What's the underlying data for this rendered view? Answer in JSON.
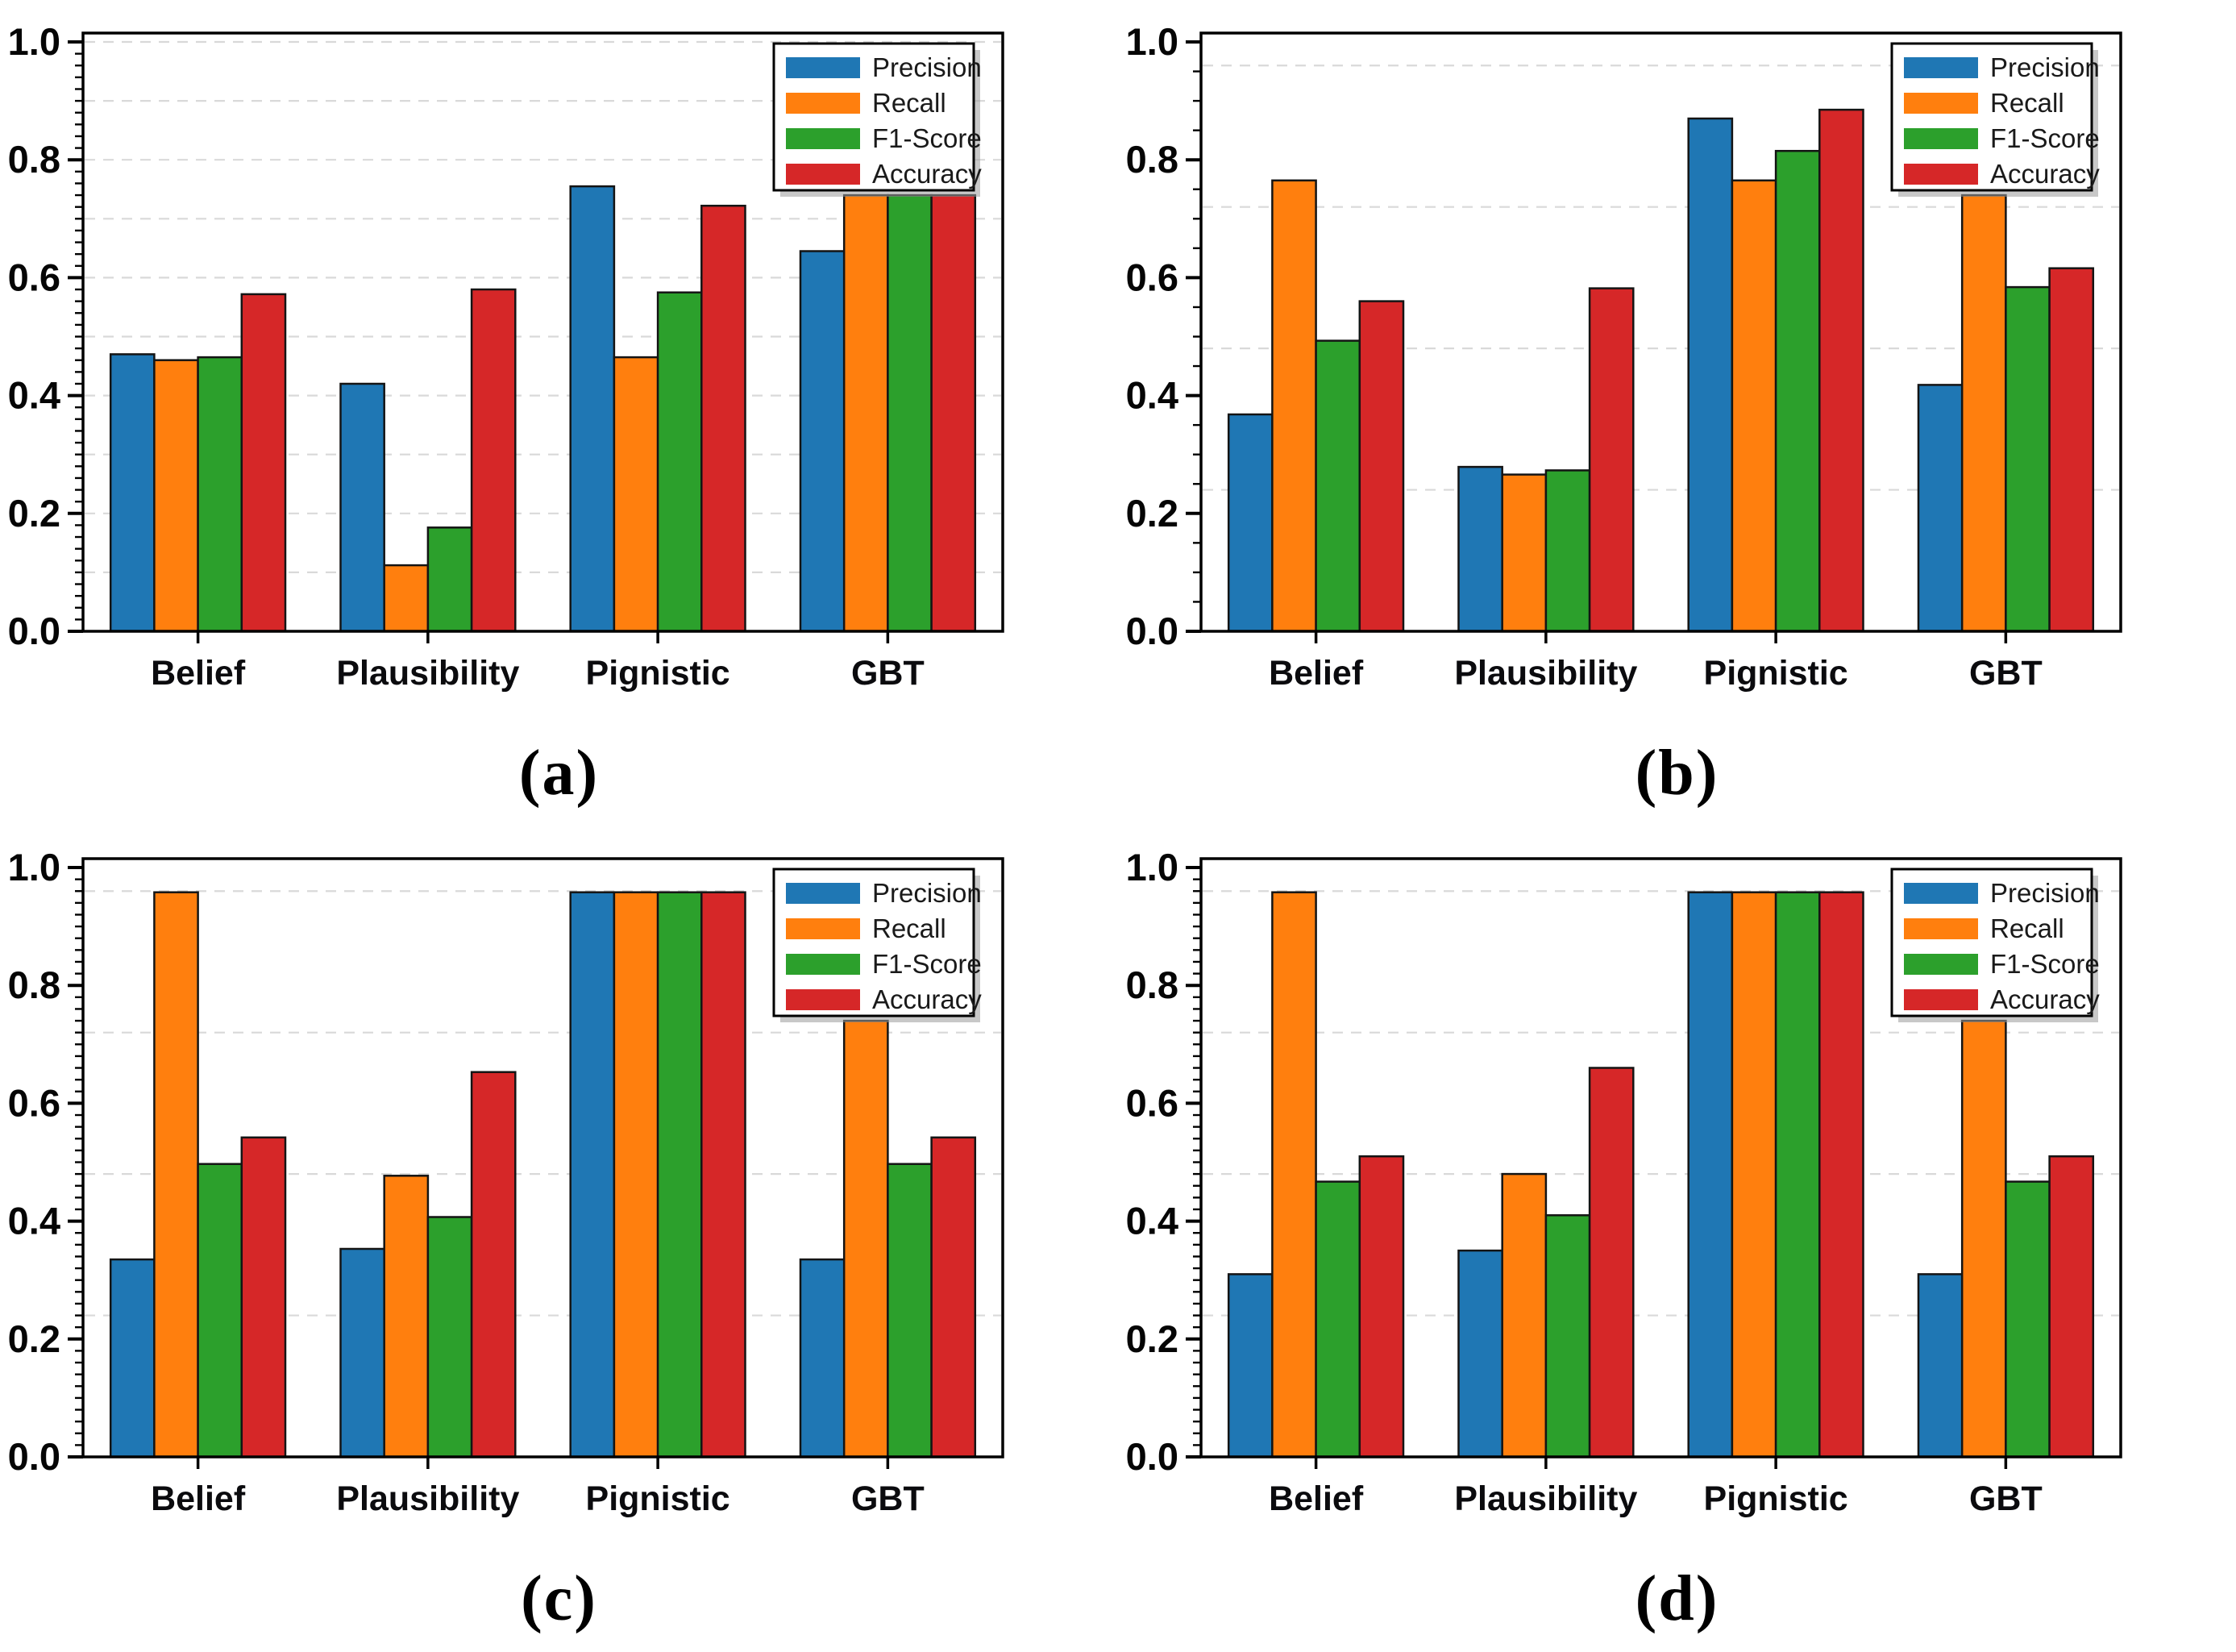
{
  "figure": {
    "background": "#ffffff",
    "description": "Four grouped bar chart panels comparing classification metrics across decision rules",
    "panel_count": 4
  },
  "chart_data": [
    {
      "type": "bar",
      "panel_label": "(a)",
      "categories": [
        "Belief",
        "Plausibility",
        "Pignistic",
        "GBT"
      ],
      "series": [
        {
          "name": "Precision",
          "color": "#1f77b4",
          "values": [
            0.47,
            0.42,
            0.755,
            0.645
          ]
        },
        {
          "name": "Recall",
          "color": "#ff7f0e",
          "values": [
            0.46,
            0.112,
            0.465,
            0.74
          ]
        },
        {
          "name": "F1-Score",
          "color": "#2ca02c",
          "values": [
            0.465,
            0.176,
            0.575,
            0.74
          ]
        },
        {
          "name": "Accuracy",
          "color": "#d62728",
          "values": [
            0.572,
            0.58,
            0.722,
            0.74
          ]
        }
      ],
      "ylim": [
        0,
        1.02
      ],
      "yticks": [
        0.0,
        0.2,
        0.4,
        0.6,
        0.8,
        1.0
      ],
      "y_minor_step": 0.02,
      "gridlines": [
        0.1,
        0.2,
        0.3,
        0.4,
        0.5,
        0.6,
        0.7,
        0.8,
        0.9,
        1.0
      ],
      "grid_style": "dashed",
      "legend_position": "top-right",
      "legend_labels": [
        "Precision",
        "Recall",
        "F1-Score",
        "Accuracy"
      ]
    },
    {
      "type": "bar",
      "panel_label": "(b)",
      "categories": [
        "Belief",
        "Plausibility",
        "Pignistic",
        "GBT"
      ],
      "series": [
        {
          "name": "Precision",
          "color": "#1f77b4",
          "values": [
            0.368,
            0.279,
            0.87,
            0.418
          ]
        },
        {
          "name": "Recall",
          "color": "#ff7f0e",
          "values": [
            0.765,
            0.266,
            0.765,
            0.74
          ]
        },
        {
          "name": "F1-Score",
          "color": "#2ca02c",
          "values": [
            0.493,
            0.273,
            0.815,
            0.584
          ]
        },
        {
          "name": "Accuracy",
          "color": "#d62728",
          "values": [
            0.56,
            0.582,
            0.885,
            0.616
          ]
        }
      ],
      "ylim": [
        0,
        1.02
      ],
      "yticks": [
        0.0,
        0.2,
        0.4,
        0.6,
        0.8,
        1.0
      ],
      "y_minor_step": 0.05,
      "gridlines": [
        0.24,
        0.48,
        0.72,
        0.96
      ],
      "grid_style": "dashed",
      "legend_position": "top-right",
      "legend_labels": [
        "Precision",
        "Recall",
        "F1-Score",
        "Accuracy"
      ]
    },
    {
      "type": "bar",
      "panel_label": "(c)",
      "categories": [
        "Belief",
        "Plausibility",
        "Pignistic",
        "GBT"
      ],
      "series": [
        {
          "name": "Precision",
          "color": "#1f77b4",
          "values": [
            0.335,
            0.353,
            0.958,
            0.335
          ]
        },
        {
          "name": "Recall",
          "color": "#ff7f0e",
          "values": [
            0.958,
            0.477,
            0.958,
            0.74
          ]
        },
        {
          "name": "F1-Score",
          "color": "#2ca02c",
          "values": [
            0.497,
            0.407,
            0.958,
            0.497
          ]
        },
        {
          "name": "Accuracy",
          "color": "#d62728",
          "values": [
            0.542,
            0.653,
            0.958,
            0.542
          ]
        }
      ],
      "ylim": [
        0,
        1.02
      ],
      "yticks": [
        0.0,
        0.2,
        0.4,
        0.6,
        0.8,
        1.0
      ],
      "y_minor_step": 0.02,
      "gridlines": [
        0.24,
        0.48,
        0.72,
        0.96
      ],
      "grid_style": "dashed",
      "legend_position": "top-right",
      "legend_labels": [
        "Precision",
        "Recall",
        "F1-Score",
        "Accuracy"
      ]
    },
    {
      "type": "bar",
      "panel_label": "(d)",
      "categories": [
        "Belief",
        "Plausibility",
        "Pignistic",
        "GBT"
      ],
      "series": [
        {
          "name": "Precision",
          "color": "#1f77b4",
          "values": [
            0.31,
            0.35,
            0.958,
            0.31
          ]
        },
        {
          "name": "Recall",
          "color": "#ff7f0e",
          "values": [
            0.958,
            0.48,
            0.958,
            0.74
          ]
        },
        {
          "name": "F1-Score",
          "color": "#2ca02c",
          "values": [
            0.467,
            0.41,
            0.958,
            0.467
          ]
        },
        {
          "name": "Accuracy",
          "color": "#d62728",
          "values": [
            0.51,
            0.66,
            0.958,
            0.51
          ]
        }
      ],
      "ylim": [
        0,
        1.02
      ],
      "yticks": [
        0.0,
        0.2,
        0.4,
        0.6,
        0.8,
        1.0
      ],
      "y_minor_step": 0.02,
      "gridlines": [
        0.24,
        0.48,
        0.72,
        0.96
      ],
      "grid_style": "dashed",
      "legend_position": "top-right",
      "legend_labels": [
        "Precision",
        "Recall",
        "F1-Score",
        "Accuracy"
      ]
    }
  ]
}
